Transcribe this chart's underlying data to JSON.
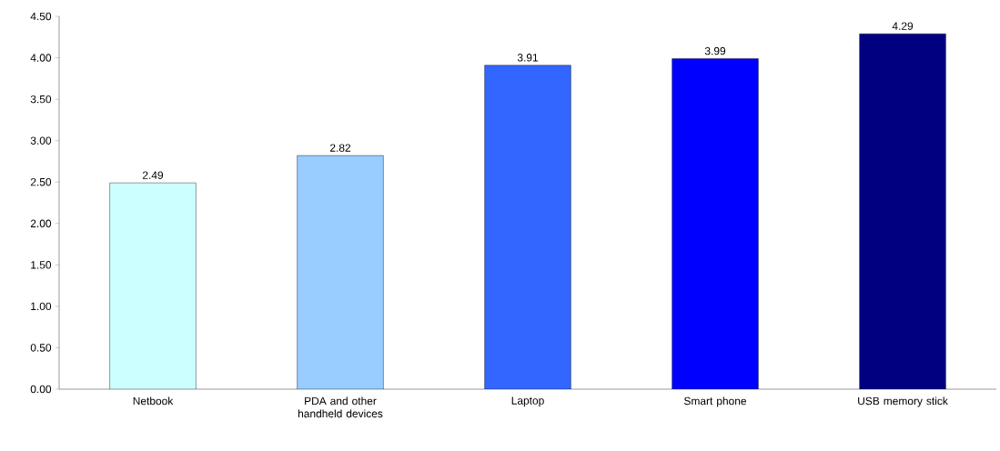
{
  "chart_data": {
    "type": "bar",
    "categories": [
      "Netbook",
      "PDA and other handheld devices",
      "Laptop",
      "Smart phone",
      "USB memory stick"
    ],
    "values": [
      2.49,
      2.82,
      3.91,
      3.99,
      4.29
    ],
    "colors": [
      "#ccffff",
      "#99ccff",
      "#3366ff",
      "#0000ff",
      "#000080"
    ],
    "ylim": [
      0,
      4.5
    ],
    "yticks": [
      {
        "value": 0,
        "label": "0.00"
      },
      {
        "value": 0.5,
        "label": "0.50"
      },
      {
        "value": 1,
        "label": "1.00"
      },
      {
        "value": 1.5,
        "label": "1.50"
      },
      {
        "value": 2,
        "label": "2.00"
      },
      {
        "value": 2.5,
        "label": "2.50"
      },
      {
        "value": 3,
        "label": "3.00"
      },
      {
        "value": 3.5,
        "label": "3.50"
      },
      {
        "value": 4,
        "label": "4.00"
      },
      {
        "value": 4.5,
        "label": "4.50"
      }
    ],
    "data_labels": true
  }
}
